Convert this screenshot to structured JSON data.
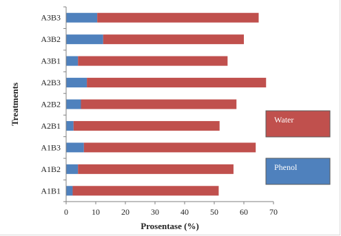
{
  "chart_data": {
    "type": "bar",
    "orientation": "horizontal",
    "stacked": true,
    "categories": [
      "A1B1",
      "A1B2",
      "A1B3",
      "A2B1",
      "A2B2",
      "A2B3",
      "A3B1",
      "A3B2",
      "A3B3"
    ],
    "series": [
      {
        "name": "Phenol",
        "color": "#4f81bd",
        "values": [
          2.2,
          4.0,
          6.0,
          2.5,
          5.0,
          7.0,
          4.0,
          12.5,
          10.5
        ]
      },
      {
        "name": "Water",
        "color": "#c0504d",
        "values": [
          49.3,
          52.5,
          58.0,
          49.3,
          52.5,
          60.5,
          50.5,
          47.5,
          54.5
        ]
      }
    ],
    "title": "",
    "xlabel": "Prosentase (%)",
    "ylabel": "Treatments",
    "xlim": [
      0,
      70
    ],
    "xticks": [
      0,
      10,
      20,
      30,
      40,
      50,
      60,
      70
    ],
    "grid": false,
    "legend": "right"
  }
}
